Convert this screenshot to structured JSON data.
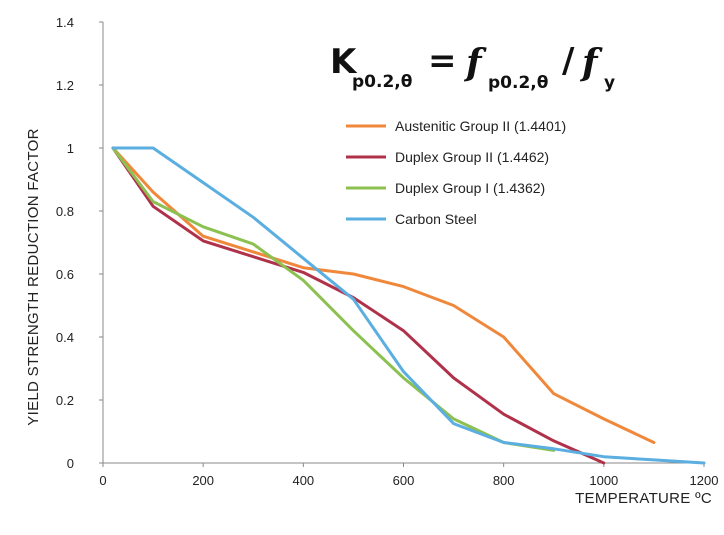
{
  "chart_data": {
    "type": "line",
    "xlabel": "TEMPERATURE ºC",
    "ylabel": "YIELD STRENGTH REDUCTION FACTOR",
    "xlim": [
      0,
      1200
    ],
    "ylim": [
      0,
      1.4
    ],
    "xticks": [
      "0",
      "200",
      "400",
      "600",
      "800",
      "1000",
      "1200"
    ],
    "yticks": [
      "0",
      "0.2",
      "0.4",
      "0.6",
      "0.8",
      "1",
      "1.2",
      "1.4"
    ],
    "grid": false,
    "legend_position": "top-right",
    "formula": {
      "k": "K",
      "k_sub": "p0.2,θ",
      "eq": "=",
      "f1": "f",
      "f1_sub": "p0.2,θ",
      "slash": "/",
      "f2": "f",
      "f2_sub": "y"
    },
    "series": [
      {
        "name": "Austenitic Group II (1.4401)",
        "color": "#f0883c",
        "x": [
          20,
          100,
          200,
          300,
          400,
          500,
          600,
          700,
          800,
          900,
          1000,
          1100
        ],
        "y": [
          1.0,
          0.86,
          0.72,
          0.67,
          0.62,
          0.6,
          0.56,
          0.5,
          0.4,
          0.22,
          0.14,
          0.065
        ]
      },
      {
        "name": "Duplex Group II (1.4462)",
        "color": "#b0324a",
        "x": [
          20,
          100,
          200,
          300,
          400,
          500,
          600,
          700,
          800,
          900,
          1000
        ],
        "y": [
          1.0,
          0.815,
          0.705,
          0.655,
          0.605,
          0.525,
          0.42,
          0.27,
          0.155,
          0.07,
          0.0
        ]
      },
      {
        "name": "Duplex Group I (1.4362)",
        "color": "#8cc152",
        "x": [
          20,
          100,
          200,
          300,
          400,
          500,
          600,
          700,
          800,
          900
        ],
        "y": [
          1.0,
          0.83,
          0.75,
          0.695,
          0.58,
          0.42,
          0.27,
          0.14,
          0.065,
          0.04
        ]
      },
      {
        "name": "Carbon Steel",
        "color": "#5aaee0",
        "x": [
          20,
          100,
          200,
          300,
          400,
          500,
          600,
          700,
          800,
          900,
          1000,
          1100,
          1200
        ],
        "y": [
          1.0,
          1.0,
          0.89,
          0.78,
          0.65,
          0.52,
          0.29,
          0.125,
          0.065,
          0.045,
          0.02,
          0.01,
          0.0
        ]
      }
    ]
  }
}
